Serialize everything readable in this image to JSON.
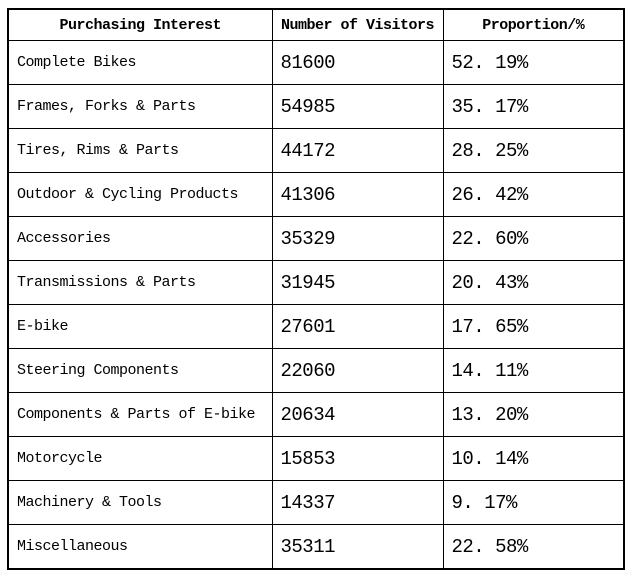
{
  "table": {
    "border_color": "#000000",
    "text_color": "#000000",
    "background_color": "#ffffff",
    "headers": [
      "Purchasing Interest",
      "Number of Visitors",
      "Proportion/%"
    ],
    "rows": [
      {
        "interest": "Complete Bikes",
        "visitors": "81600",
        "proportion": "52. 19%"
      },
      {
        "interest": "Frames, Forks & Parts",
        "visitors": "54985",
        "proportion": "35. 17%"
      },
      {
        "interest": "Tires, Rims & Parts",
        "visitors": "44172",
        "proportion": "28. 25%"
      },
      {
        "interest": "Outdoor & Cycling Products",
        "visitors": "41306",
        "proportion": "26. 42%"
      },
      {
        "interest": "Accessories",
        "visitors": "35329",
        "proportion": "22. 60%"
      },
      {
        "interest": "Transmissions & Parts",
        "visitors": "31945",
        "proportion": "20. 43%"
      },
      {
        "interest": "E-bike",
        "visitors": "27601",
        "proportion": "17. 65%"
      },
      {
        "interest": "Steering Components",
        "visitors": "22060",
        "proportion": "14. 11%"
      },
      {
        "interest": "Components & Parts of E-bike",
        "visitors": "20634",
        "proportion": "13. 20%"
      },
      {
        "interest": "Motorcycle",
        "visitors": "15853",
        "proportion": "10. 14%"
      },
      {
        "interest": "Machinery & Tools",
        "visitors": "14337",
        "proportion": "9. 17%"
      },
      {
        "interest": "Miscellaneous",
        "visitors": "35311",
        "proportion": "22. 58%"
      }
    ]
  }
}
